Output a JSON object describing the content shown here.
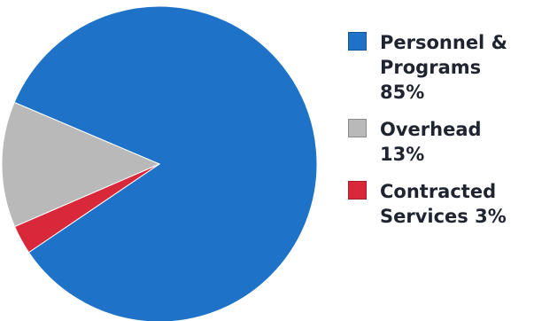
{
  "chart_data": {
    "type": "pie",
    "title": "",
    "slices": [
      {
        "label": "Personnel & Programs",
        "value": 85,
        "color": "#1e73c8",
        "legend_text": "Personnel &\nPrograms  85%"
      },
      {
        "label": "Overhead",
        "value": 13,
        "color": "#b9b9b9",
        "legend_text": "Overhead\n13%"
      },
      {
        "label": "Contracted Services",
        "value": 3,
        "color": "#d9283a",
        "legend_text": "Contracted\nServices  3%"
      }
    ],
    "legend": {
      "placement": "right"
    }
  }
}
